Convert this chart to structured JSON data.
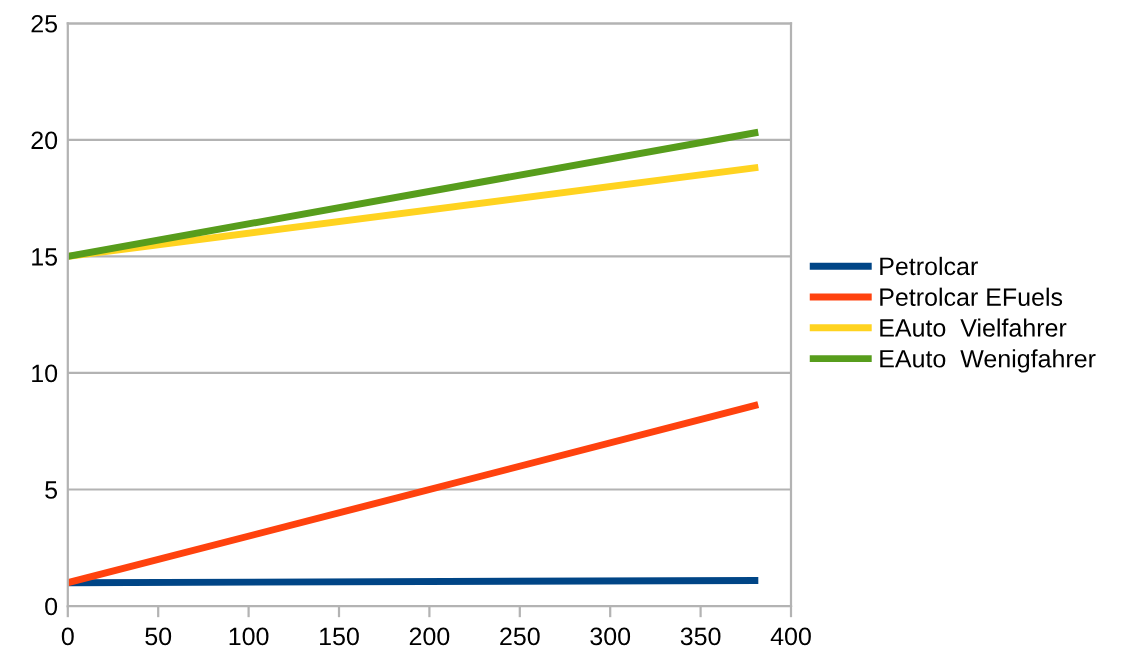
{
  "chart_data": {
    "type": "line",
    "x": [
      0,
      380
    ],
    "series": [
      {
        "name": "Petrolcar",
        "color": "#004586",
        "values": [
          1,
          1.1
        ]
      },
      {
        "name": "Petrolcar EFuels",
        "color": "#ff420e",
        "values": [
          1,
          8.6
        ]
      },
      {
        "name": "EAuto  Vielfahrer",
        "color": "#ffd320",
        "values": [
          15,
          18.8
        ]
      },
      {
        "name": "EAuto  Wenigfahrer",
        "color": "#579d1c",
        "values": [
          15,
          20.3
        ]
      }
    ],
    "xlim": [
      0,
      400
    ],
    "xticks": [
      0,
      50,
      100,
      150,
      200,
      250,
      300,
      350,
      400
    ],
    "ylim": [
      0,
      25
    ],
    "yticks": [
      0,
      5,
      10,
      15,
      20,
      25
    ],
    "grid": "y",
    "legend": "right",
    "marker": "none",
    "line_style": "solid"
  }
}
